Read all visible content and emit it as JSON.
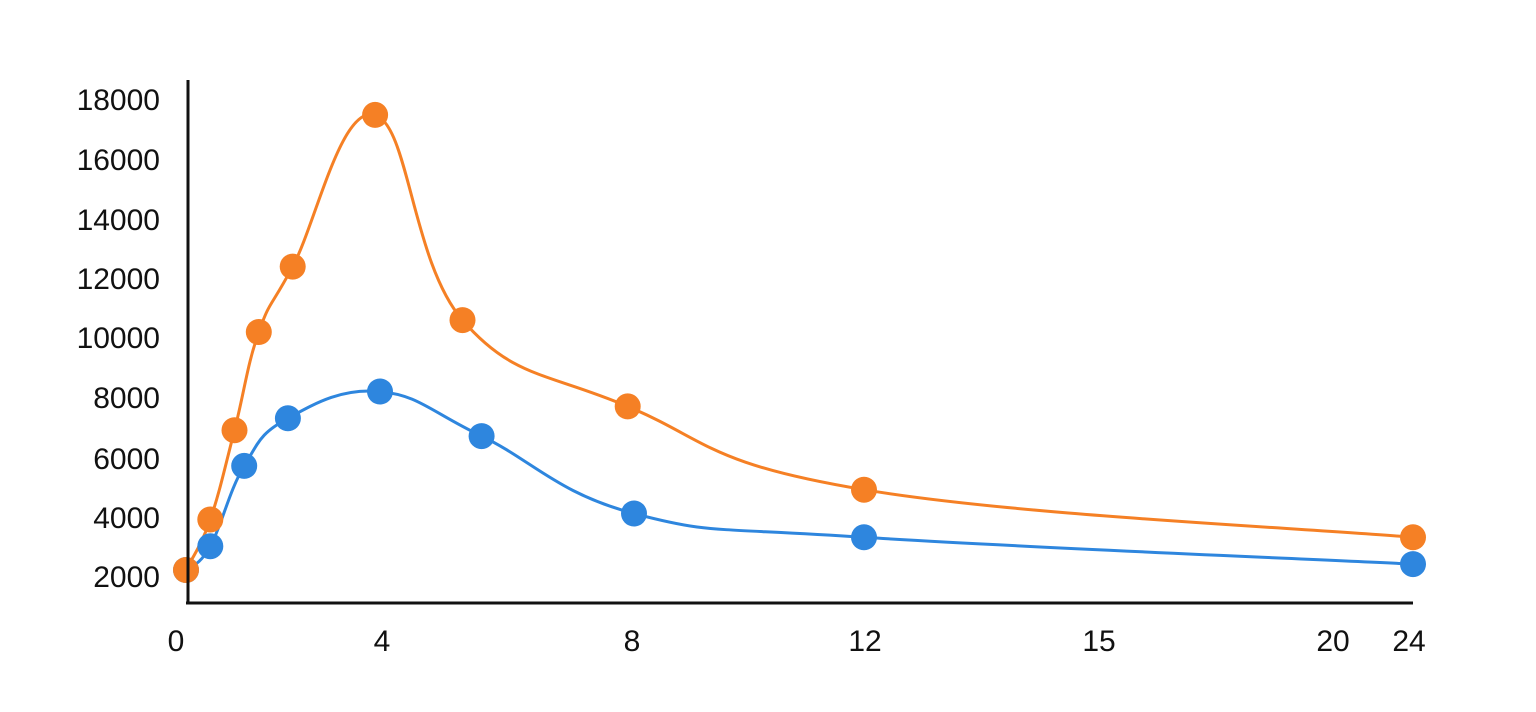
{
  "chart_data": {
    "type": "line",
    "title": "",
    "xlabel": "",
    "ylabel": "",
    "legend": "none",
    "grid": false,
    "smooth": true,
    "x_ticks": [
      "0",
      "4",
      "8",
      "12",
      "15",
      "20",
      "24"
    ],
    "y_ticks": [
      "2000",
      "4000",
      "6000",
      "8000",
      "10000",
      "12000",
      "14000",
      "16000",
      "18000"
    ],
    "series": [
      {
        "color": "#2E86DE",
        "x": [
          0,
          0.5,
          1.2,
          2.1,
          4,
          5.6,
          8,
          12,
          24
        ],
        "y": [
          2100,
          2900,
          5600,
          7200,
          8100,
          6600,
          4000,
          3200,
          2300
        ]
      },
      {
        "color": "#F58025",
        "x": [
          0,
          0.5,
          1.0,
          1.5,
          2.2,
          3.9,
          5.3,
          7.9,
          12,
          24
        ],
        "y": [
          2100,
          3800,
          6800,
          10100,
          12300,
          17400,
          10500,
          7600,
          4800,
          3200
        ]
      }
    ]
  }
}
